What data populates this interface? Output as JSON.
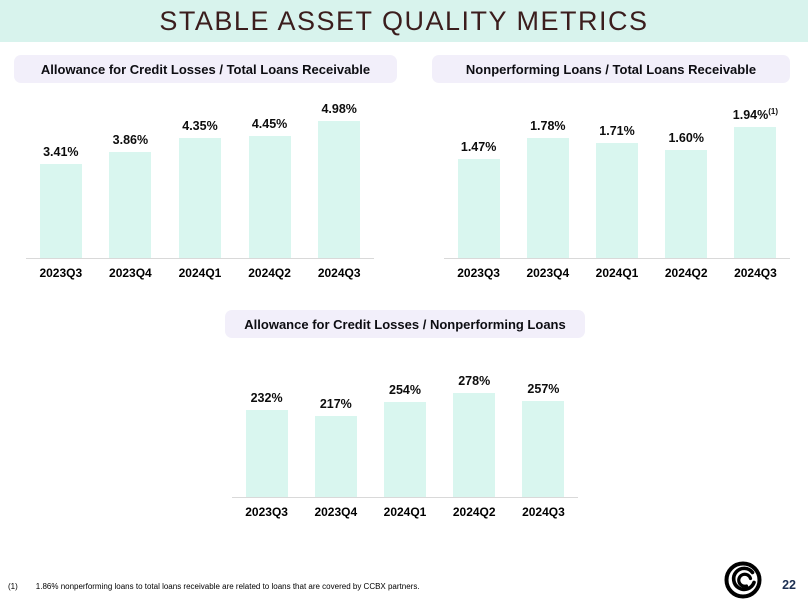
{
  "slide": {
    "title": "STABLE ASSET QUALITY METRICS",
    "page_number": "22",
    "footnote_marker": "(1)",
    "footnote_text": "1.86% nonperforming loans to total loans receivable are related to loans that are covered by CCBX partners."
  },
  "colors": {
    "title_band_bg": "#d8f3ed",
    "title_text": "#3b1d1d",
    "header_pill_bg": "#f2effa",
    "bar_fill": "#d9f6ef",
    "axis_line": "#d9d9d9",
    "data_label_text": "#0d0d0d",
    "page_number_text": "#1c2f52",
    "logo_black": "#000000"
  },
  "chart_data": [
    {
      "id": "allowance-to-total-loans",
      "type": "bar",
      "title": "Allowance for Credit Losses / Total Loans Receivable",
      "categories": [
        "2023Q3",
        "2023Q4",
        "2024Q1",
        "2024Q2",
        "2024Q3"
      ],
      "values": [
        3.41,
        3.86,
        4.35,
        4.45,
        4.98
      ],
      "labels": [
        "3.41%",
        "3.86%",
        "4.35%",
        "4.45%",
        "4.98%"
      ],
      "superscripts": {},
      "unit": "percent",
      "ylim": [
        0,
        5.5
      ],
      "grid": false,
      "legend": "none",
      "data_labels": "above-bars"
    },
    {
      "id": "nonperforming-to-total-loans",
      "type": "bar",
      "title": "Nonperforming Loans / Total Loans Receivable",
      "categories": [
        "2023Q3",
        "2023Q4",
        "2024Q1",
        "2024Q2",
        "2024Q3"
      ],
      "values": [
        1.47,
        1.78,
        1.71,
        1.6,
        1.94
      ],
      "labels": [
        "1.47%",
        "1.78%",
        "1.71%",
        "1.60%",
        "1.94%"
      ],
      "superscripts": {
        "4": "(1)"
      },
      "unit": "percent",
      "ylim": [
        0,
        2.2
      ],
      "grid": false,
      "legend": "none",
      "data_labels": "above-bars"
    },
    {
      "id": "allowance-to-nonperforming",
      "type": "bar",
      "title": "Allowance for Credit Losses / Nonperforming Loans",
      "categories": [
        "2023Q3",
        "2023Q4",
        "2024Q1",
        "2024Q2",
        "2024Q3"
      ],
      "values": [
        232,
        217,
        254,
        278,
        257
      ],
      "labels": [
        "232%",
        "217%",
        "254%",
        "278%",
        "257%"
      ],
      "superscripts": {},
      "unit": "percent",
      "ylim": [
        0,
        320
      ],
      "grid": false,
      "legend": "none",
      "data_labels": "above-bars"
    }
  ]
}
